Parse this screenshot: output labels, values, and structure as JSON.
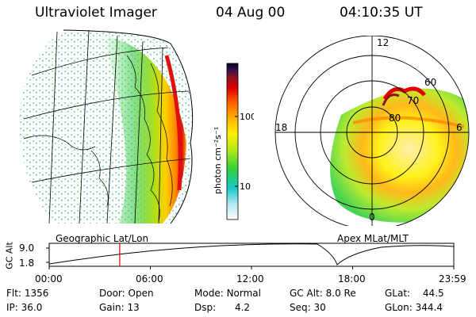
{
  "header": {
    "title": "Ultraviolet Imager",
    "date": "04 Aug 00",
    "time": "04:10:35 UT"
  },
  "left_panel": {
    "label": "Geographic Lat/Lon"
  },
  "right_panel": {
    "label": "Apex MLat/MLT",
    "mlt_labels": {
      "top": "12",
      "left": "18",
      "right": "6",
      "bottom": "0"
    },
    "lat_labels": [
      "60",
      "70",
      "80"
    ]
  },
  "colorbar": {
    "unit": "photon cm⁻²s⁻¹",
    "ticks": [
      "100",
      "10"
    ],
    "colors": [
      "#ffffff",
      "#b0e8f0",
      "#18c8c8",
      "#30d040",
      "#b8e818",
      "#fff000",
      "#ffb000",
      "#ff6000",
      "#e00000",
      "#901020",
      "#301050",
      "#100020"
    ]
  },
  "timeline": {
    "ylabel": "GC Alt",
    "yticks": [
      "9.0",
      "1.8"
    ],
    "xticks": [
      "00:00",
      "06:00",
      "12:00",
      "18:00",
      "23:59"
    ],
    "marker_time_hours": 4.18
  },
  "info": {
    "row1": [
      {
        "label": "Flt:",
        "value": "1356"
      },
      {
        "label": "Door:",
        "value": "Open"
      },
      {
        "label": "Mode:",
        "value": "Normal"
      },
      {
        "label": "GC Alt:",
        "value": "8.0 Re"
      },
      {
        "label": "GLat:",
        "value": "44.5"
      }
    ],
    "row2": [
      {
        "label": "IP:",
        "value": "36.0"
      },
      {
        "label": "Gain:",
        "value": "13"
      },
      {
        "label": "Dsp:",
        "value": "4.2"
      },
      {
        "label": "Seq:",
        "value": "30"
      },
      {
        "label": "GLon:",
        "value": "344.4"
      }
    ]
  }
}
